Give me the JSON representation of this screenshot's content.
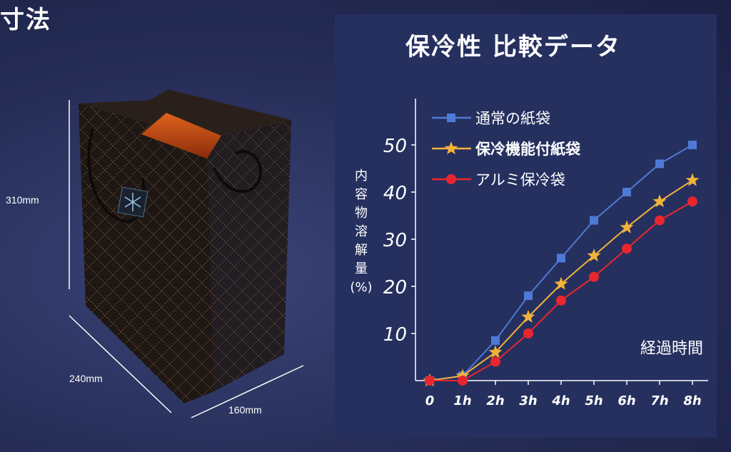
{
  "left": {
    "title": "寸法",
    "height_label": "310mm",
    "width_label": "240mm",
    "depth_label": "160mm"
  },
  "chart_title": "保冷性 比較データ",
  "colors": {
    "series_blue": "#4f79d6",
    "series_gold": "#f2b23a",
    "series_red": "#e8262e",
    "panel": "#25305f"
  },
  "chart_data": {
    "type": "line",
    "categories": [
      "0",
      "1h",
      "2h",
      "3h",
      "4h",
      "5h",
      "6h",
      "7h",
      "8h"
    ],
    "ylabel": "内容物溶解量(%)",
    "ylabel_lines": [
      "内",
      "容",
      "物",
      "溶",
      "解",
      "量",
      "(%)"
    ],
    "xlabel": "経過時間",
    "ylim": [
      0,
      60
    ],
    "yticks": [
      10,
      20,
      30,
      40,
      50
    ],
    "grid": false,
    "legend_position": "top-left",
    "series": [
      {
        "name": "通常の紙袋",
        "marker": "square",
        "color": "#4f79d6",
        "values": [
          0,
          1,
          8.5,
          18,
          26,
          34,
          40,
          46,
          50
        ]
      },
      {
        "name": "保冷機能付紙袋",
        "marker": "star",
        "color": "#f2b23a",
        "bold": true,
        "values": [
          0,
          1,
          6,
          13.5,
          20.5,
          26.5,
          32.5,
          38,
          42.5
        ]
      },
      {
        "name": "アルミ保冷袋",
        "marker": "circle",
        "color": "#e8262e",
        "values": [
          0,
          0,
          4,
          10,
          17,
          22,
          28,
          34,
          38
        ]
      }
    ]
  }
}
